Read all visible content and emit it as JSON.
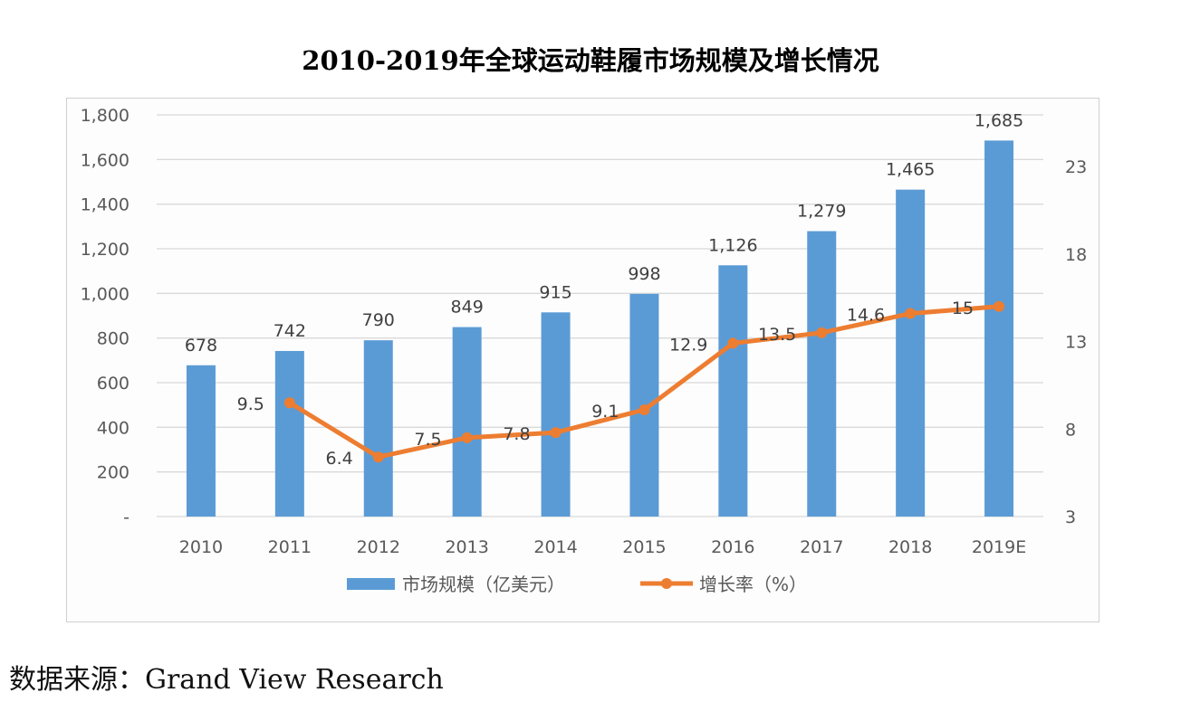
{
  "title": "2010-2019年全球运动鞋履市场规模及增长情况",
  "source": "数据来源：Grand View Research",
  "chart_data": {
    "type": "bar+line",
    "title": "2010-2019年全球运动鞋履市场规模及增长情况",
    "categories": [
      "2010",
      "2011",
      "2012",
      "2013",
      "2014",
      "2015",
      "2016",
      "2017",
      "2018",
      "2019E"
    ],
    "series": [
      {
        "name": "市场规模（亿美元）",
        "type": "bar",
        "axis": "left",
        "color": "#5b9bd5",
        "values": [
          678,
          742,
          790,
          849,
          915,
          998,
          1126,
          1279,
          1465,
          1685
        ],
        "labels": [
          "678",
          "742",
          "790",
          "849",
          "915",
          "998",
          "1,126",
          "1,279",
          "1,465",
          "1,685"
        ]
      },
      {
        "name": "增长率（%）",
        "type": "line",
        "axis": "right",
        "color": "#ed7d31",
        "values": [
          null,
          9.5,
          6.4,
          7.5,
          7.8,
          9.1,
          12.9,
          13.5,
          14.6,
          15
        ],
        "labels": [
          "",
          "9.5",
          "6.4",
          "7.5",
          "7.8",
          "9.1",
          "12.9",
          "13.5",
          "14.6",
          "15"
        ]
      }
    ],
    "y_left": {
      "ylim": [
        0,
        1800
      ],
      "ticks": [
        "-",
        "200",
        "400",
        "600",
        "800",
        "1,000",
        "1,200",
        "1,400",
        "1,600",
        "1,800"
      ]
    },
    "y_right": {
      "ylim": [
        3,
        26
      ],
      "ticks": [
        "3",
        "8",
        "13",
        "18",
        "23"
      ]
    },
    "grid": true,
    "legend": "bottom"
  }
}
